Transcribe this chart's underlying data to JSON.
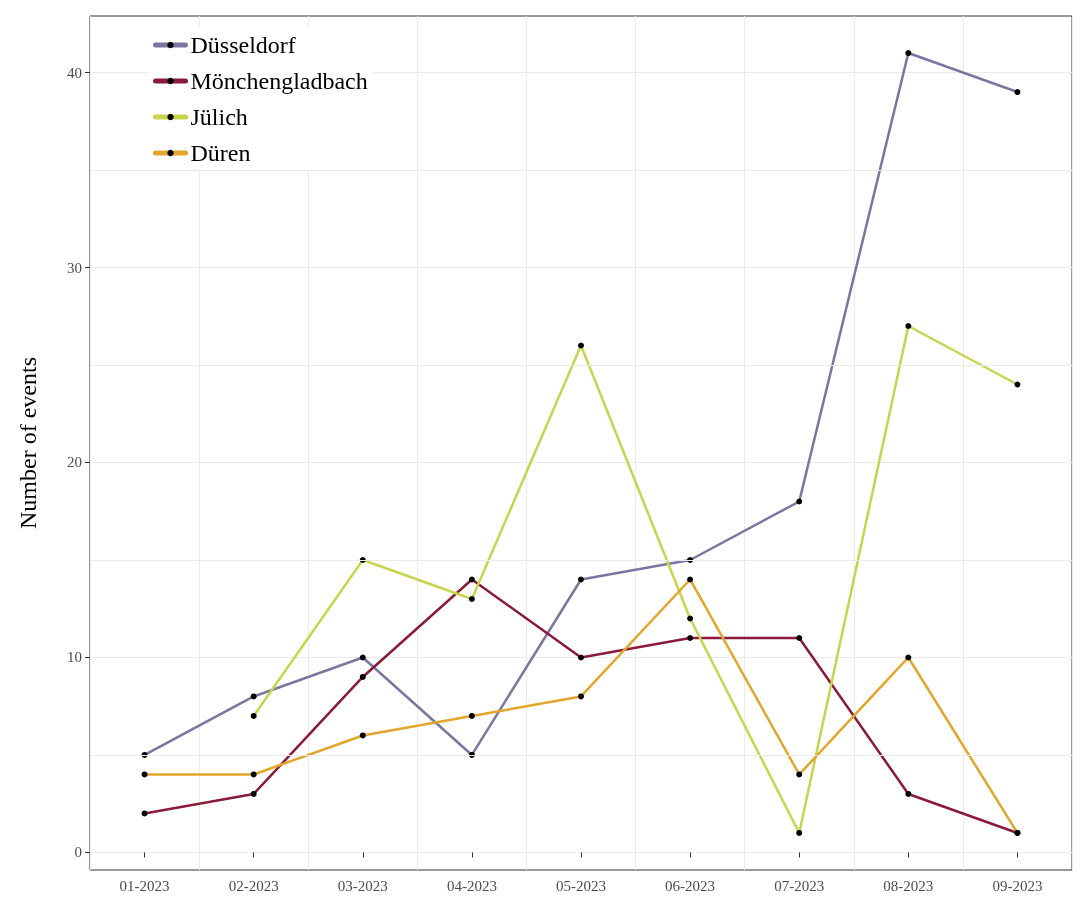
{
  "chart_data": {
    "type": "line",
    "ylabel": "Number of events",
    "categories": [
      "01-2023",
      "02-2023",
      "03-2023",
      "04-2023",
      "05-2023",
      "06-2023",
      "07-2023",
      "08-2023",
      "09-2023"
    ],
    "series": [
      {
        "name": "Düsseldorf",
        "color": "#7b75a0",
        "values": [
          5,
          8,
          10,
          5,
          14,
          15,
          18,
          41,
          39
        ]
      },
      {
        "name": "Mönchengladbach",
        "color": "#8b1a3a",
        "values": [
          2,
          3,
          9,
          14,
          10,
          11,
          11,
          3,
          1
        ]
      },
      {
        "name": "Jülich",
        "color": "#c8d44e",
        "values": [
          null,
          7,
          15,
          13,
          26,
          12,
          1,
          27,
          24
        ]
      },
      {
        "name": "Düren",
        "color": "#e3a62c",
        "values": [
          4,
          4,
          6,
          7,
          8,
          14,
          4,
          10,
          1
        ]
      }
    ],
    "ylim": [
      -0.9,
      42.9
    ],
    "yticks": [
      0,
      10,
      20,
      30,
      40
    ],
    "grid": true,
    "legend": "top left",
    "marker": "circle",
    "line_style": "solid"
  }
}
